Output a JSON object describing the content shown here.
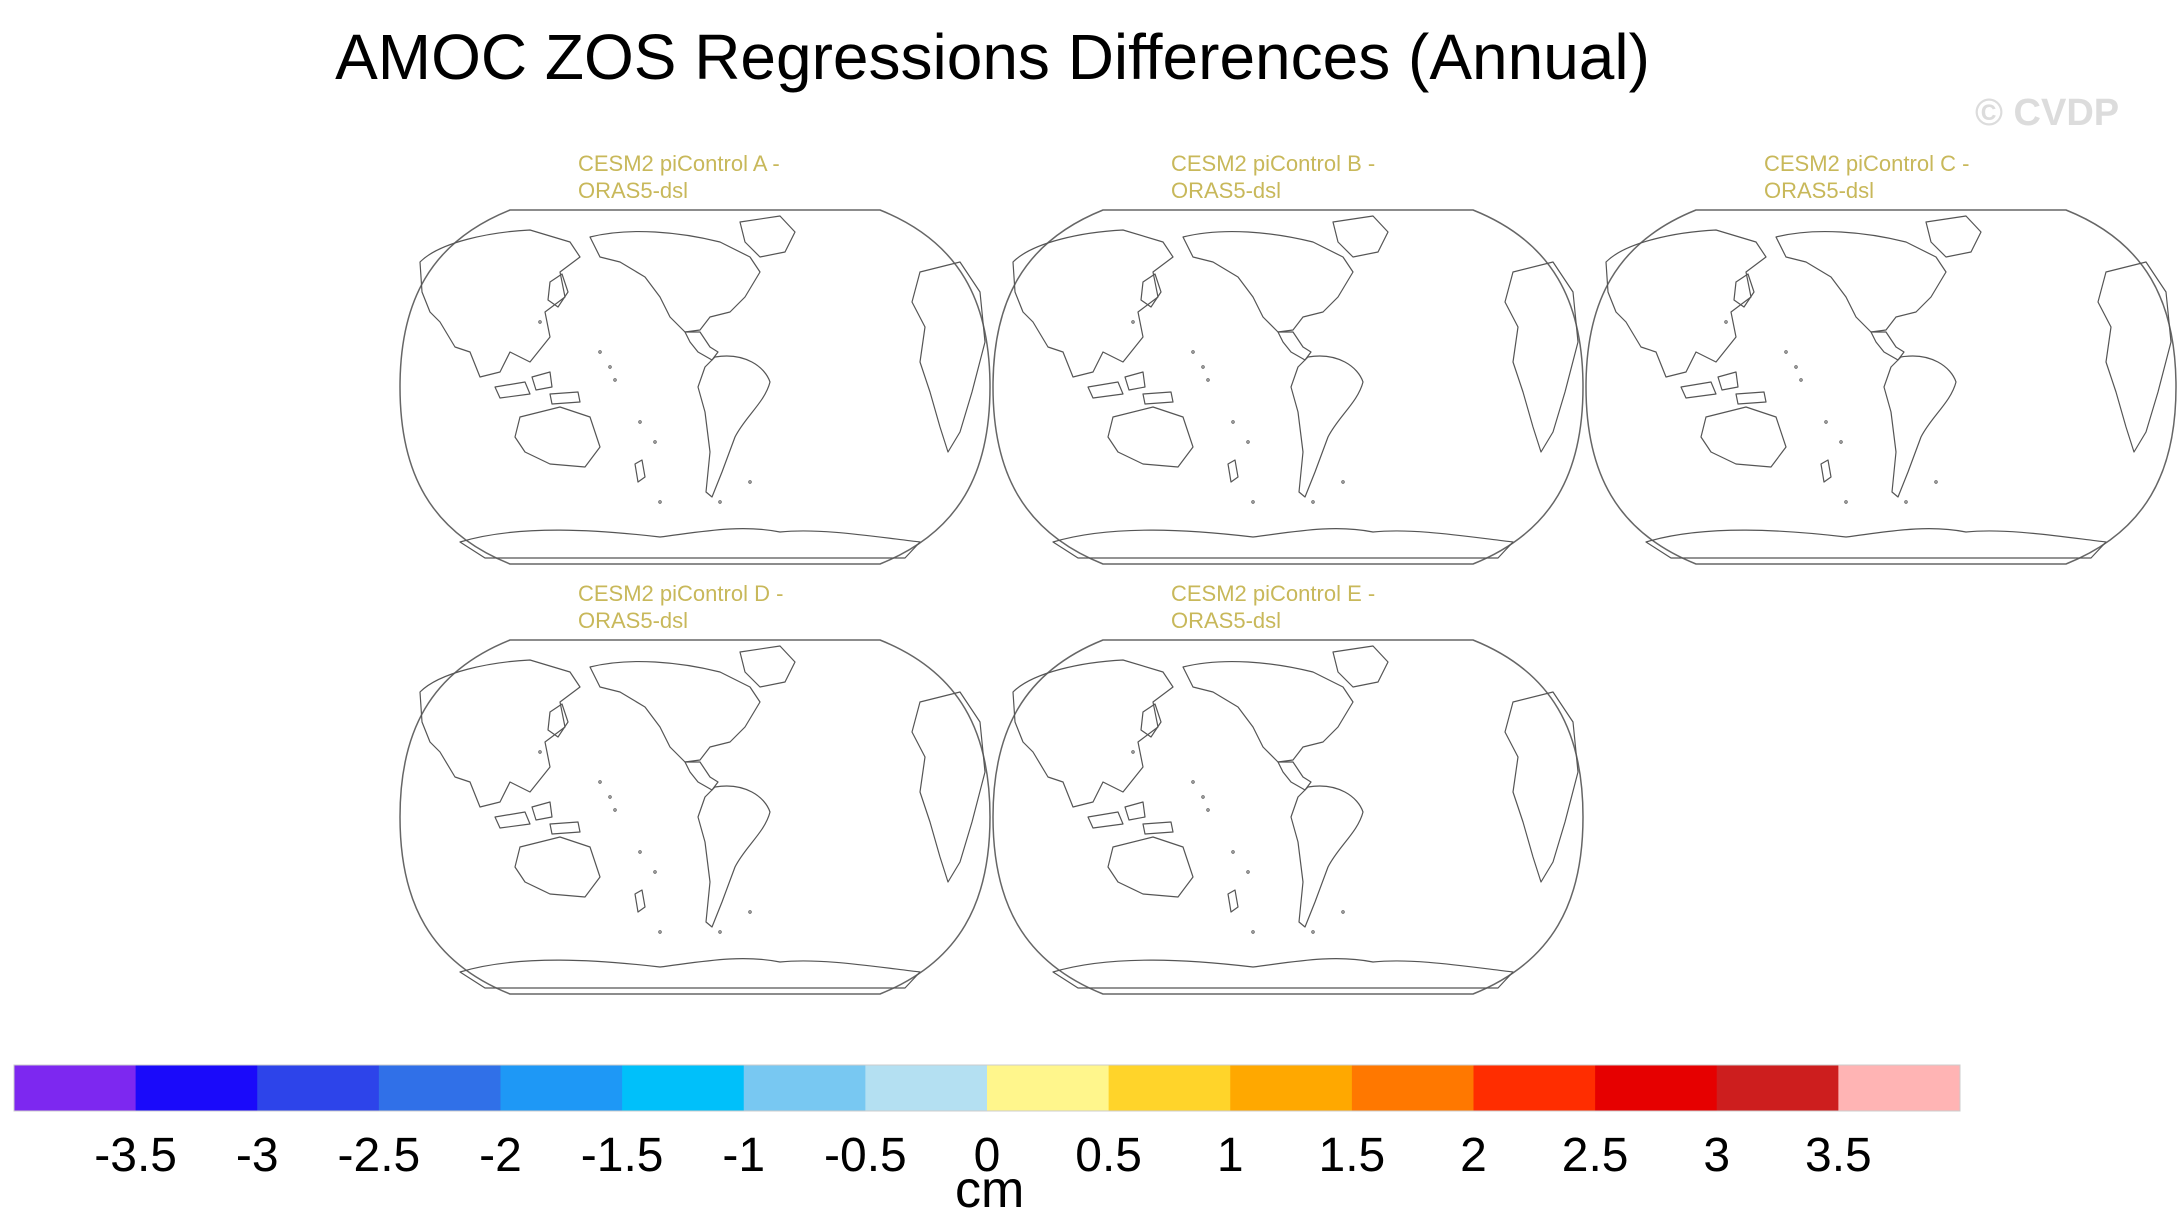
{
  "chart_data": {
    "type": "map",
    "title": "AMOC ZOS Regressions Differences (Annual)",
    "watermark": "© CVDP",
    "projection": "Robinson-like global, Pacific-centered",
    "panels": [
      {
        "label": "CESM2 piControl A -\nORAS5-dsl"
      },
      {
        "label": "CESM2 piControl B -\nORAS5-dsl"
      },
      {
        "label": "CESM2 piControl C -\nORAS5-dsl"
      },
      {
        "label": "CESM2 piControl D -\nORAS5-dsl"
      },
      {
        "label": "CESM2 piControl E -\nORAS5-dsl"
      }
    ],
    "colorbar": {
      "unit": "cm",
      "ticks": [
        "-3.5",
        "-3",
        "-2.5",
        "-2",
        "-1.5",
        "-1",
        "-0.5",
        "0",
        "0.5",
        "1",
        "1.5",
        "2",
        "2.5",
        "3",
        "3.5"
      ],
      "colors": [
        "#7d28f0",
        "#1a0afa",
        "#2d44ea",
        "#3070e8",
        "#1e98f6",
        "#00c0fa",
        "#78c8f2",
        "#b4e0f2",
        "#fff68c",
        "#ffd42a",
        "#ffa800",
        "#ff7800",
        "#ff2d00",
        "#e60000",
        "#cd1e1e",
        "#ffb4b4"
      ]
    }
  }
}
